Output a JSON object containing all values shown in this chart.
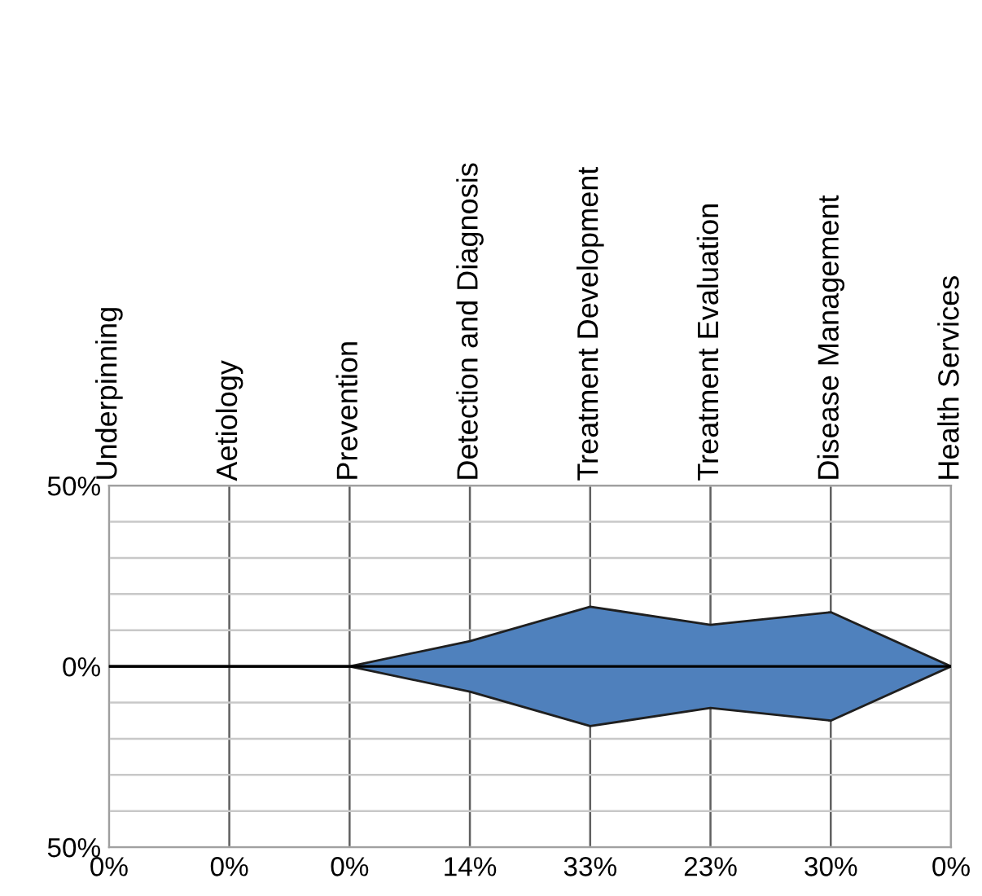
{
  "chart_data": {
    "type": "area",
    "categories": [
      "Underpinning",
      "Aetiology",
      "Prevention",
      "Detection and Diagnosis",
      "Treatment Development",
      "Treatment Evaluation",
      "Disease Management",
      "Health Services"
    ],
    "series": [
      {
        "color": "#4f81bd",
        "values": [
          0,
          0,
          0,
          7,
          16.5,
          11.5,
          15,
          0
        ]
      },
      {
        "color": "#4f80bc",
        "values": [
          0,
          0,
          0,
          -7,
          -16.5,
          -11.5,
          -15,
          0
        ]
      }
    ],
    "annotations": [
      "0%",
      "0%",
      "0%",
      "14%",
      "33%",
      "23%",
      "30%",
      "0%"
    ],
    "ylim": [
      -50,
      50
    ],
    "yticks": [
      {
        "value": 50,
        "label": "50%"
      },
      {
        "value": 40,
        "label": null
      },
      {
        "value": 30,
        "label": null
      },
      {
        "value": 20,
        "label": null
      },
      {
        "value": 10,
        "label": null
      },
      {
        "value": 0,
        "label": "0%"
      },
      {
        "value": -10,
        "label": null
      },
      {
        "value": -20,
        "label": null
      },
      {
        "value": -30,
        "label": null
      },
      {
        "value": -40,
        "label": null
      },
      {
        "value": -50,
        "label": "50%"
      }
    ],
    "grid": true
  }
}
